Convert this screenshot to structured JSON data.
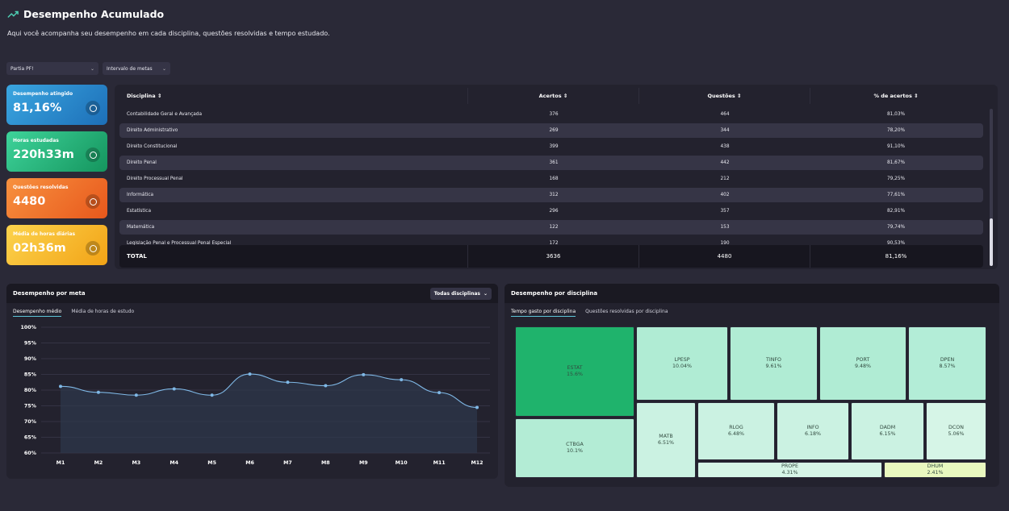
{
  "header": {
    "title": "Desempenho Acumulado",
    "subtitle": "Aqui você acompanha seu desempenho em cada disciplina, questões resolvidas e tempo estudado."
  },
  "filters": {
    "plan": "Partia PF!",
    "interval": "Intervalo de metas"
  },
  "cards": [
    {
      "label": "Desempenho atingido",
      "value": "81,16%",
      "icon": "star-badge-icon"
    },
    {
      "label": "Horas estudadas",
      "value": "220h33m",
      "icon": "clock-icon"
    },
    {
      "label": "Questões resolvidas",
      "value": "4480",
      "icon": "check-circle-icon"
    },
    {
      "label": "Média de horas diárias",
      "value": "02h36m",
      "icon": "hourglass-icon"
    }
  ],
  "table": {
    "headers": [
      "Disciplina",
      "Acertos",
      "Questões",
      "% de acertos"
    ],
    "rows": [
      [
        "Contabilidade Geral e Avançada",
        "376",
        "464",
        "81,03%"
      ],
      [
        "Direito Administrativo",
        "269",
        "344",
        "78,20%"
      ],
      [
        "Direito Constitucional",
        "399",
        "438",
        "91,10%"
      ],
      [
        "Direito Penal",
        "361",
        "442",
        "81,67%"
      ],
      [
        "Direito Processual Penal",
        "168",
        "212",
        "79,25%"
      ],
      [
        "Informática",
        "312",
        "402",
        "77,61%"
      ],
      [
        "Estatística",
        "296",
        "357",
        "82,91%"
      ],
      [
        "Matemática",
        "122",
        "153",
        "79,74%"
      ],
      [
        "Legislação Penal e Processual Penal Especial",
        "172",
        "190",
        "90,53%"
      ]
    ],
    "total": [
      "TOTAL",
      "3636",
      "4480",
      "81,16%"
    ]
  },
  "perf_panel": {
    "title": "Desempenho por meta",
    "dropdown": "Todas disciplinas",
    "tabs": [
      "Desempenho médio",
      "Média de horas de estudo"
    ]
  },
  "chart_data": {
    "type": "area",
    "x": [
      "M1",
      "M2",
      "M3",
      "M4",
      "M5",
      "M6",
      "M7",
      "M8",
      "M9",
      "M10",
      "M11",
      "M12"
    ],
    "values": [
      81.2,
      79.3,
      78.4,
      80.4,
      78.4,
      85.1,
      82.5,
      81.4,
      84.9,
      83.3,
      79.2,
      74.5
    ],
    "ylim": [
      60,
      100
    ],
    "yticks": [
      "100%",
      "95%",
      "90%",
      "85%",
      "80%",
      "75%",
      "70%",
      "65%",
      "60%"
    ],
    "grid": true,
    "line_color": "#7fb8e6"
  },
  "disc_panel": {
    "title": "Desempenho por disciplina",
    "tabs": [
      "Tempo gasto por disciplina",
      "Questões resolvidas por disciplina"
    ],
    "treemap": [
      {
        "name": "ESTAT",
        "pct": "15.6%"
      },
      {
        "name": "CTBGA",
        "pct": "10.1%"
      },
      {
        "name": "LPESP",
        "pct": "10.04%"
      },
      {
        "name": "TINFO",
        "pct": "9.61%"
      },
      {
        "name": "PORT",
        "pct": "9.48%"
      },
      {
        "name": "DPEN",
        "pct": "8.57%"
      },
      {
        "name": "MATB",
        "pct": "6.51%"
      },
      {
        "name": "RLOG",
        "pct": "6.48%"
      },
      {
        "name": "INFO",
        "pct": "6.18%"
      },
      {
        "name": "DADM",
        "pct": "6.15%"
      },
      {
        "name": "DCON",
        "pct": "5.06%"
      },
      {
        "name": "PROPE",
        "pct": "4.31%"
      },
      {
        "name": "DHUM",
        "pct": "2.41%"
      }
    ]
  }
}
